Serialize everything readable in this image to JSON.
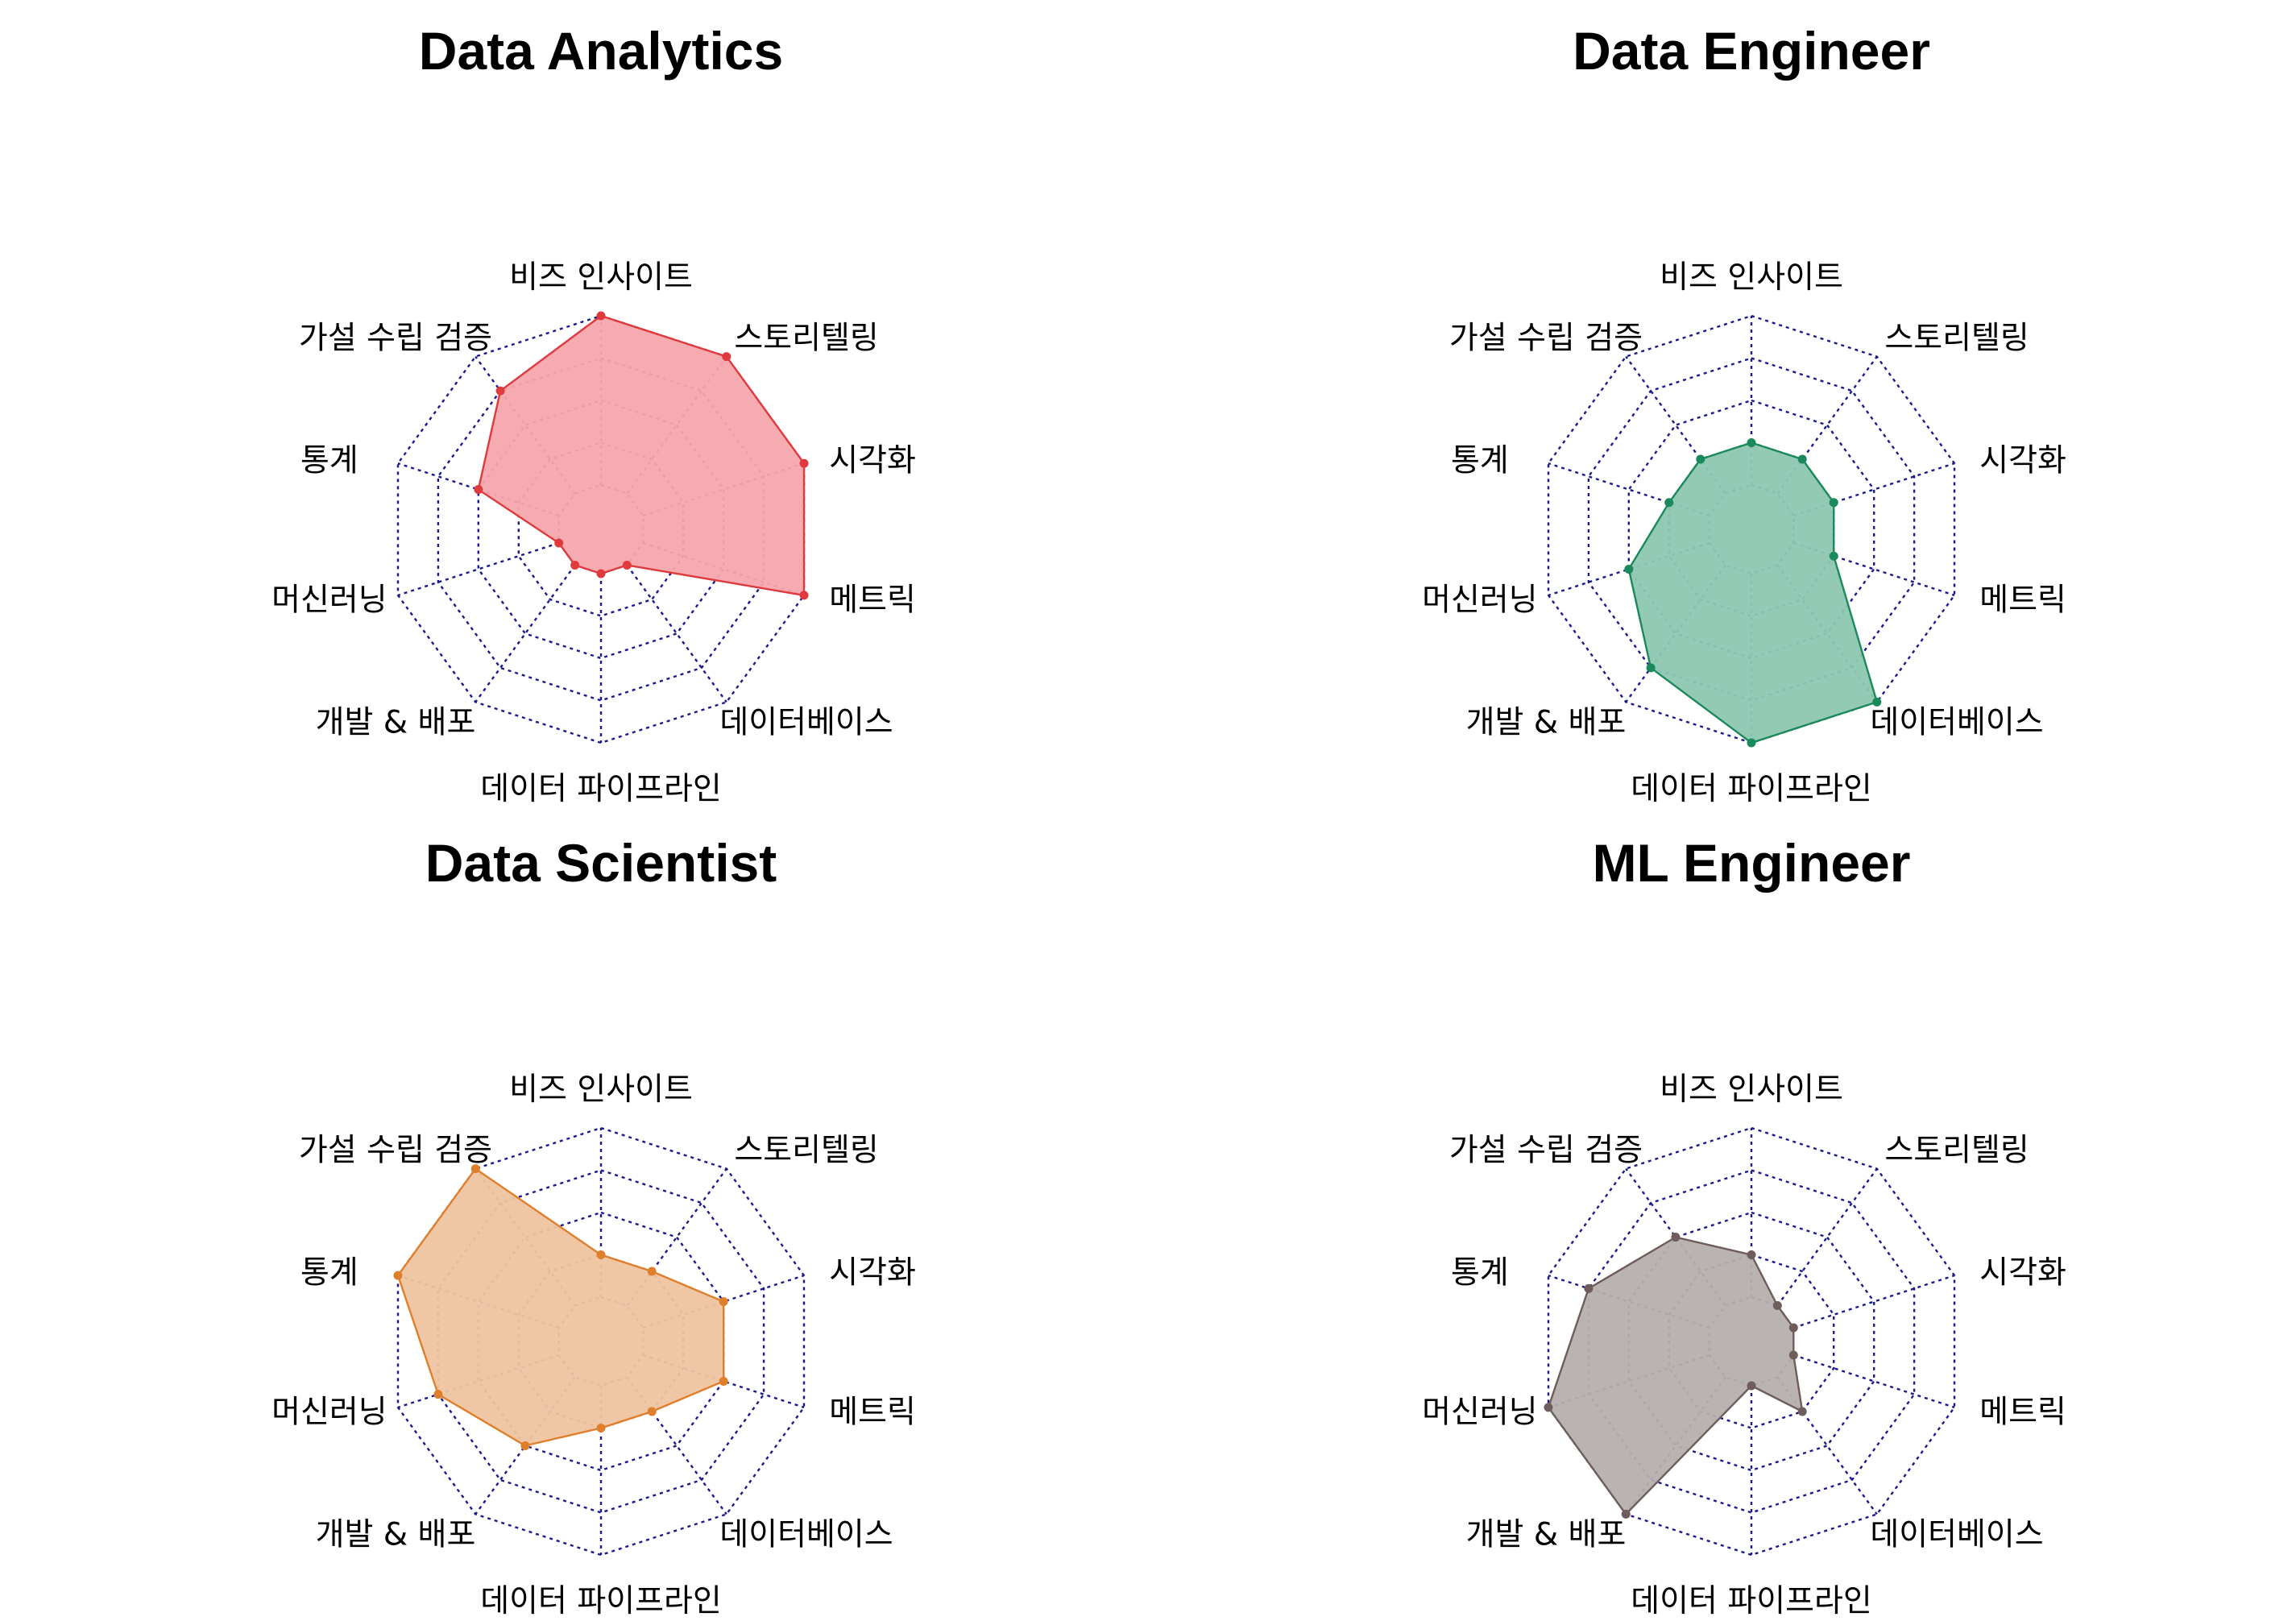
{
  "chart_data": [
    {
      "type": "radar",
      "title": "Data Analytics",
      "axes": [
        "비즈 인사이트",
        "스토리텔링",
        "시각화",
        "메트릭",
        "데이터베이스",
        "데이터 파이프라인",
        "개발 & 배포",
        "머신러닝",
        "통계",
        "가설 수립 검증"
      ],
      "values": [
        5,
        5,
        5,
        5,
        1,
        1,
        1,
        1,
        3,
        4
      ],
      "range": [
        0,
        5
      ],
      "rings": 5,
      "fill_color": "#f4a6ab",
      "line_color": "#e0393e"
    },
    {
      "type": "radar",
      "title": "Data Engineer",
      "axes": [
        "비즈 인사이트",
        "스토리텔링",
        "시각화",
        "메트릭",
        "데이터베이스",
        "데이터 파이프라인",
        "개발 & 배포",
        "머신러닝",
        "통계",
        "가설 수립 검증"
      ],
      "values": [
        2,
        2,
        2,
        2,
        5,
        5,
        4,
        3,
        2,
        2
      ],
      "range": [
        0,
        5
      ],
      "rings": 5,
      "fill_color": "#8cc7b1",
      "line_color": "#1b8a5a"
    },
    {
      "type": "radar",
      "title": "Data Scientist",
      "axes": [
        "비즈 인사이트",
        "스토리텔링",
        "시각화",
        "메트릭",
        "데이터베이스",
        "데이터 파이프라인",
        "개발 & 배포",
        "머신러닝",
        "통계",
        "가설 수립 검증"
      ],
      "values": [
        2,
        2,
        3,
        3,
        2,
        2,
        3,
        4,
        5,
        5
      ],
      "range": [
        0,
        5
      ],
      "rings": 5,
      "fill_color": "#efc4a0",
      "line_color": "#e07f2b"
    },
    {
      "type": "radar",
      "title": "ML Engineer",
      "axes": [
        "비즈 인사이트",
        "스토리텔링",
        "시각화",
        "메트릭",
        "데이터베이스",
        "데이터 파이프라인",
        "개발 & 배포",
        "머신러닝",
        "통계",
        "가설 수립 검증"
      ],
      "values": [
        2,
        1,
        1,
        1,
        2,
        1,
        5,
        5,
        4,
        3
      ],
      "range": [
        0,
        5
      ],
      "rings": 5,
      "fill_color": "#b5afae",
      "line_color": "#6e5d5a"
    }
  ]
}
